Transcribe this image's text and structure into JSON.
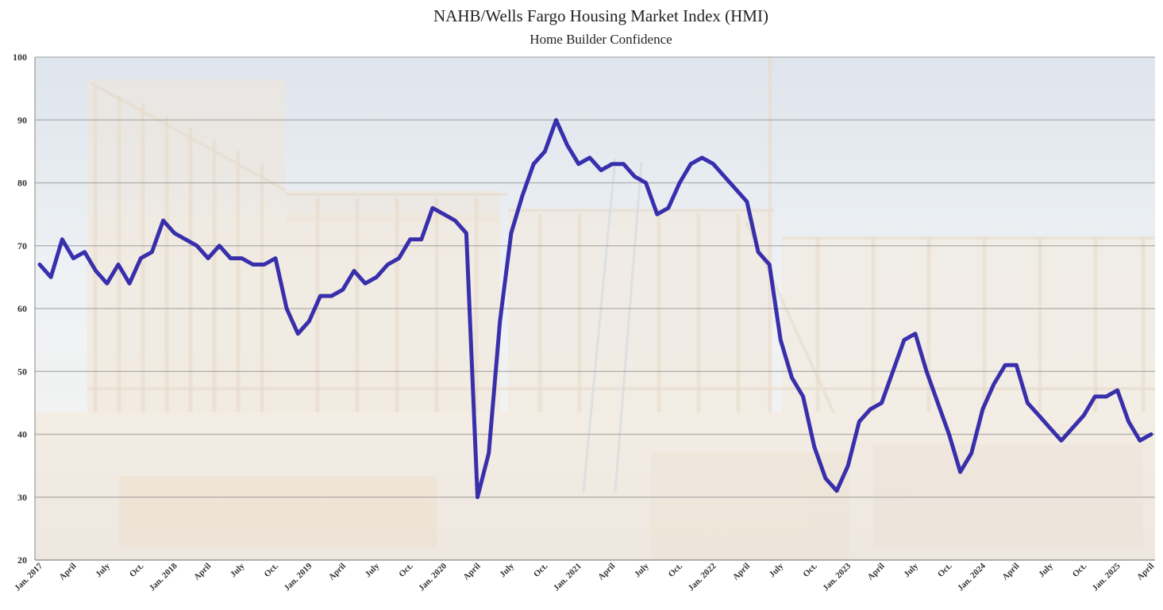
{
  "chart_data": {
    "type": "line",
    "title": "NAHB/Wells Fargo Housing Market Index (HMI)",
    "subtitle": "Home Builder Confidence",
    "xlabel": "",
    "ylabel": "",
    "ylim": [
      20,
      100
    ],
    "yticks": [
      "20",
      "30",
      "40",
      "50",
      "60",
      "70",
      "80",
      "90",
      "100"
    ],
    "grid": true,
    "legend": "none",
    "xtick_labels": [
      {
        "label": "Jan. 2017",
        "index": 0
      },
      {
        "label": "April",
        "index": 3
      },
      {
        "label": "July",
        "index": 6
      },
      {
        "label": "Oct.",
        "index": 9
      },
      {
        "label": "Jan. 2018",
        "index": 12
      },
      {
        "label": "April",
        "index": 15
      },
      {
        "label": "July",
        "index": 18
      },
      {
        "label": "Oct.",
        "index": 21
      },
      {
        "label": "Jan. 2019",
        "index": 24
      },
      {
        "label": "April",
        "index": 27
      },
      {
        "label": "July",
        "index": 30
      },
      {
        "label": "Oct.",
        "index": 33
      },
      {
        "label": "Jan. 2020",
        "index": 36
      },
      {
        "label": "April",
        "index": 39
      },
      {
        "label": "July",
        "index": 42
      },
      {
        "label": "Oct.",
        "index": 45
      },
      {
        "label": "Jan. 2021",
        "index": 48
      },
      {
        "label": "April",
        "index": 51
      },
      {
        "label": "July",
        "index": 54
      },
      {
        "label": "Oct.",
        "index": 57
      },
      {
        "label": "Jan. 2022",
        "index": 60
      },
      {
        "label": "April",
        "index": 63
      },
      {
        "label": "July",
        "index": 66
      },
      {
        "label": "Oct.",
        "index": 69
      },
      {
        "label": "Jan. 2023",
        "index": 72
      },
      {
        "label": "April",
        "index": 75
      },
      {
        "label": "July",
        "index": 78
      },
      {
        "label": "Oct.",
        "index": 81
      },
      {
        "label": "Jan. 2024",
        "index": 84
      },
      {
        "label": "April",
        "index": 87
      },
      {
        "label": "July",
        "index": 90
      },
      {
        "label": "Oct.",
        "index": 93
      },
      {
        "label": "Jan. 2025",
        "index": 96
      },
      {
        "label": "April",
        "index": 99
      }
    ],
    "series": [
      {
        "color": "#1f14a3",
        "values": [
          67,
          65,
          71,
          68,
          69,
          66,
          64,
          67,
          64,
          68,
          69,
          74,
          72,
          71,
          70,
          68,
          70,
          68,
          68,
          67,
          67,
          68,
          60,
          56,
          58,
          62,
          62,
          63,
          66,
          64,
          65,
          67,
          68,
          71,
          71,
          76,
          75,
          74,
          72,
          30,
          37,
          58,
          72,
          78,
          83,
          85,
          90,
          86,
          83,
          84,
          82,
          83,
          83,
          81,
          80,
          75,
          76,
          80,
          83,
          84,
          83,
          81,
          79,
          77,
          69,
          67,
          55,
          49,
          46,
          38,
          33,
          31,
          35,
          42,
          44,
          45,
          50,
          55,
          56,
          50,
          45,
          40,
          34,
          37,
          44,
          48,
          51,
          51,
          45,
          43,
          41,
          39,
          41,
          43,
          46,
          46,
          47,
          42,
          39,
          40
        ]
      }
    ]
  }
}
